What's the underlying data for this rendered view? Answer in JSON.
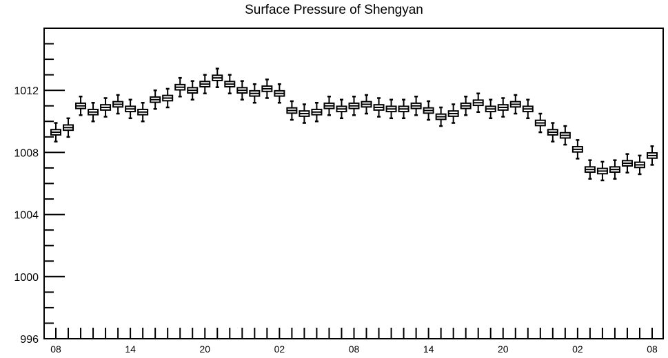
{
  "chart_data": {
    "type": "box",
    "title": "Surface Pressure of Shengyan",
    "xlabel": "",
    "ylabel": "",
    "ylim": [
      996,
      1016
    ],
    "y_ticks": [
      996,
      1000,
      1004,
      1008,
      1012
    ],
    "x_ticks": [
      {
        "index": 0,
        "label": "08"
      },
      {
        "index": 6,
        "label": "14"
      },
      {
        "index": 12,
        "label": "20"
      },
      {
        "index": 18,
        "label": "02"
      },
      {
        "index": 24,
        "label": "08"
      },
      {
        "index": 30,
        "label": "14"
      },
      {
        "index": 36,
        "label": "20"
      },
      {
        "index": 42,
        "label": "02"
      },
      {
        "index": 48,
        "label": "08"
      }
    ],
    "grid": false,
    "legend": "none",
    "series": [
      {
        "color": "#000000",
        "medians": [
          1009.3,
          1009.6,
          1011.0,
          1010.6,
          1010.9,
          1011.1,
          1010.8,
          1010.6,
          1011.4,
          1011.5,
          1012.2,
          1012.0,
          1012.4,
          1012.8,
          1012.4,
          1012.0,
          1011.8,
          1012.1,
          1011.8,
          1010.7,
          1010.5,
          1010.6,
          1011.0,
          1010.8,
          1011.0,
          1011.1,
          1010.9,
          1010.8,
          1010.8,
          1011.0,
          1010.7,
          1010.3,
          1010.5,
          1011.0,
          1011.2,
          1010.8,
          1010.9,
          1011.1,
          1010.8,
          1009.9,
          1009.3,
          1009.1,
          1008.2,
          1006.9,
          1006.8,
          1006.9,
          1007.3,
          1007.2,
          1007.8
        ]
      }
    ]
  }
}
